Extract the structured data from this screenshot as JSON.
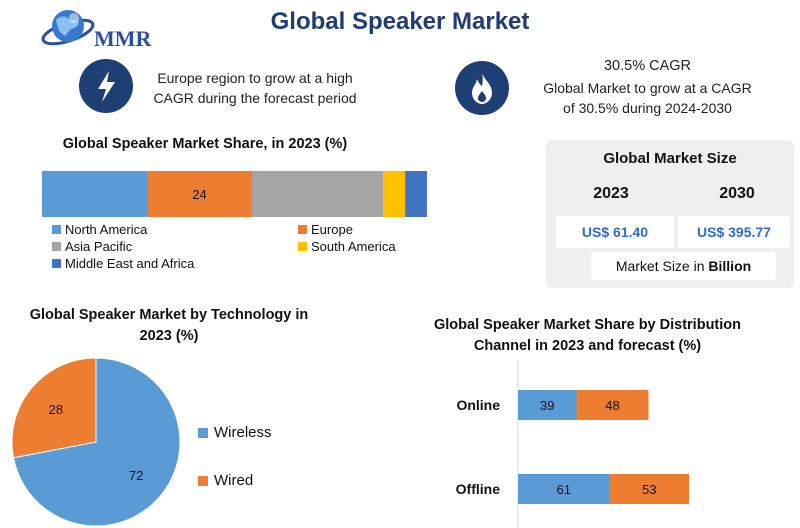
{
  "header": {
    "title": "Global Speaker Market",
    "logo_text": "MMR"
  },
  "highlights": {
    "left_text_line1": "Europe region to grow at a high",
    "left_text_line2": "CAGR during the forecast period",
    "cagr_title": "30.5% CAGR",
    "right_text_line1": "Global Market to grow at a CAGR",
    "right_text_line2": "of 30.5% during 2024-2030",
    "left_icon": "lightning-icon",
    "right_icon": "flame-icon"
  },
  "market_size": {
    "title": "Global Market Size",
    "year1": "2023",
    "year2": "2030",
    "value1": "US$ 61.40",
    "value2": "US$ 395.77",
    "footer_prefix": "Market Size in ",
    "footer_bold": "Billion"
  },
  "colors": {
    "North America": "#5b9bd5",
    "Europe": "#ed7d31",
    "Asia Pacific": "#a5a5a5",
    "South America": "#ffc000",
    "Middle East and Africa": "#4472c4",
    "Wireless": "#5b9bd5",
    "Wired": "#ed7d31",
    "dark_navy": "#1e3f73"
  },
  "chart_data": [
    {
      "type": "bar",
      "orientation": "horizontal-stacked",
      "title": "Global Speaker Market Share, in 2023 (%)",
      "series": [
        {
          "name": "North America",
          "values": [
            24
          ]
        },
        {
          "name": "Europe",
          "values": [
            24
          ]
        },
        {
          "name": "Asia Pacific",
          "values": [
            30
          ]
        },
        {
          "name": "South America",
          "values": [
            5
          ]
        },
        {
          "name": "Middle East and Africa",
          "values": [
            5
          ]
        }
      ],
      "data_labels": {
        "Europe": "24"
      },
      "legend": [
        "North America",
        "Europe",
        "Asia Pacific",
        "South America",
        "Middle East and Africa"
      ]
    },
    {
      "type": "pie",
      "title_line1": "Global Speaker Market by Technology in",
      "title_line2": "2023 (%)",
      "slices": [
        {
          "name": "Wireless",
          "value": 72
        },
        {
          "name": "Wired",
          "value": 28
        }
      ],
      "legend_placement": "right"
    },
    {
      "type": "bar",
      "orientation": "horizontal-stacked",
      "title_line1": "Global Speaker Market Share by Distribution",
      "title_line2": "Channel in 2023 and forecast (%)",
      "categories": [
        "Online",
        "Offline"
      ],
      "series": [
        {
          "values": [
            39,
            61
          ],
          "color": "#5b9bd5"
        },
        {
          "values": [
            48,
            53
          ],
          "color": "#ed7d31"
        }
      ]
    }
  ]
}
